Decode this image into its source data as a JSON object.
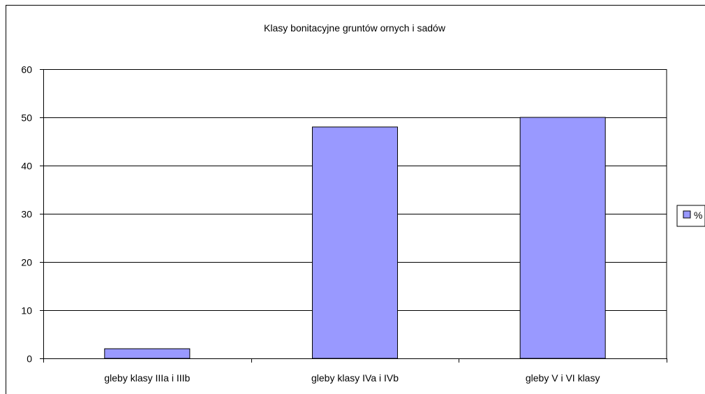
{
  "colors": {
    "bar_fill": "#9999ff",
    "bar_stroke": "#000000",
    "grid": "#000000",
    "background": "#ffffff"
  },
  "chart_data": {
    "type": "bar",
    "title": "Klasy bonitacyjne gruntów ornych i sadów",
    "xlabel": "",
    "ylabel": "",
    "categories": [
      "gleby klasy IIIa i IIIb",
      "gleby klasy IVa i IVb",
      "gleby V i VI klasy"
    ],
    "series": [
      {
        "name": "%",
        "values": [
          2,
          48,
          50
        ]
      }
    ],
    "ylim": [
      0,
      60
    ],
    "yticks": [
      0,
      10,
      20,
      30,
      40,
      50,
      60
    ],
    "grid": true,
    "legend": {
      "position": "right",
      "items": [
        "%"
      ]
    }
  }
}
